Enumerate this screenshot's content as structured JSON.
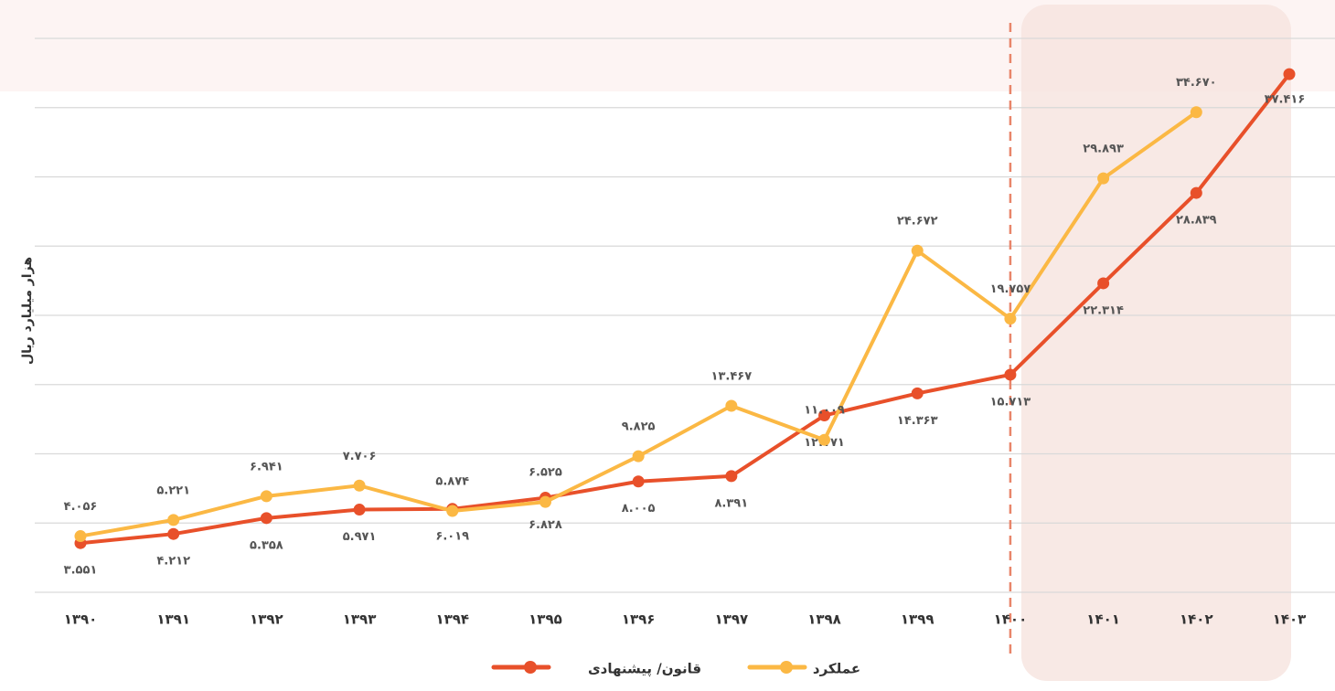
{
  "chart_data": {
    "type": "line",
    "y_label": "هزار میلیارد ریال",
    "categories": [
      "۱۳۹۰",
      "۱۳۹۱",
      "۱۳۹۲",
      "۱۳۹۳",
      "۱۳۹۴",
      "۱۳۹۵",
      "۱۳۹۶",
      "۱۳۹۷",
      "۱۳۹۸",
      "۱۳۹۹",
      "۱۴۰۰",
      "۱۴۰۱",
      "۱۴۰۲",
      "۱۴۰۳"
    ],
    "ylim": [
      0,
      40
    ],
    "yticks": [
      0,
      5,
      10,
      15,
      20,
      25,
      30,
      35,
      40
    ],
    "grid": true,
    "series": [
      {
        "name": "قانون/ پیشنهادی",
        "color": "#e8502a",
        "values": [
          3.551,
          4.212,
          5.358,
          5.971,
          6.019,
          6.828,
          8.005,
          8.391,
          12.771,
          14.363,
          15.713,
          22.314,
          28.839,
          37.416
        ],
        "value_labels": [
          "۳.۵۵۱",
          "۴.۲۱۲",
          "۵.۳۵۸",
          "۵.۹۷۱",
          "۶.۰۱۹",
          "۶.۸۲۸",
          "۸.۰۰۵",
          "۸.۳۹۱",
          "۱۲.۷۷۱",
          "۱۴.۳۶۳",
          "۱۵.۷۱۳",
          "۲۲.۳۱۴",
          "۲۸.۸۳۹",
          "۳۷.۴۱۶"
        ]
      },
      {
        "name": "عملکرد",
        "color": "#fbb844",
        "values": [
          4.056,
          5.221,
          6.941,
          7.706,
          5.874,
          6.525,
          9.825,
          13.467,
          11.009,
          24.672,
          19.757,
          29.893,
          34.67,
          null
        ],
        "value_labels": [
          "۴.۰۵۶",
          "۵.۲۲۱",
          "۶.۹۴۱",
          "۷.۷۰۶",
          "۵.۸۷۴",
          "۶.۵۲۵",
          "۹.۸۲۵",
          "۱۳.۴۶۷",
          "۱۱.۰۰۹",
          "۲۴.۶۷۲",
          "۱۹.۷۵۷",
          "۲۹.۸۹۳",
          "۳۴.۶۷۰",
          null
        ]
      }
    ]
  }
}
